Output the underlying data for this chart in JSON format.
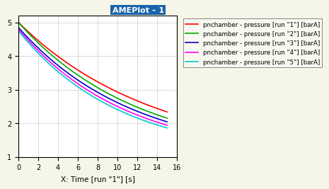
{
  "title": "AMEPlot - 1",
  "xlabel": "X: Time [run \"1\"] [s]",
  "ylabel": "",
  "xlim": [
    0,
    16
  ],
  "ylim": [
    1.0,
    5.2
  ],
  "xticks": [
    0,
    2,
    4,
    6,
    8,
    10,
    12,
    14,
    16
  ],
  "yticks": [
    1.0,
    2.0,
    3.0,
    4.0,
    5.0
  ],
  "t_start": 0,
  "t_end": 15,
  "n_points": 300,
  "curves": [
    {
      "run": "1",
      "color": "#ff0000",
      "y0": 5.0,
      "k": 0.073
    },
    {
      "run": "2",
      "color": "#00aa00",
      "y0": 5.0,
      "k": 0.083
    },
    {
      "run": "3",
      "color": "#0000cc",
      "y0": 4.85,
      "k": 0.087
    },
    {
      "run": "4",
      "color": "#ff00ff",
      "y0": 4.8,
      "k": 0.093
    },
    {
      "run": "5",
      "color": "#00cccc",
      "y0": 4.75,
      "k": 0.098
    }
  ],
  "legend_labels": [
    "pnchamber - pressure [run \"1\"] [barA]",
    "pnchamber - pressure [run \"2\"] [barA]",
    "pnchamber - pressure [run \"3\"] [barA]",
    "pnchamber - pressure [run \"4\"] [barA]",
    "pnchamber - pressure [run \"5\"] [barA]"
  ],
  "bg_color": "#f5f5e8",
  "plot_bg": "#ffffff",
  "grid_color": "#cccccc"
}
